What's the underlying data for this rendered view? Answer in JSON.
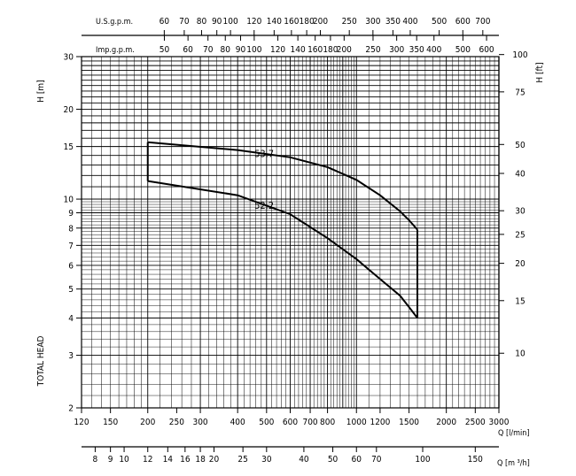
{
  "chart_data": {
    "type": "line",
    "scale": "log-log",
    "grid": true,
    "axes": {
      "q_lmin": {
        "label": "Q [l/min]",
        "range": [
          120,
          3000
        ],
        "ticks": [
          120,
          150,
          200,
          250,
          300,
          400,
          500,
          600,
          700,
          800,
          1000,
          1200,
          1500,
          2000,
          2500,
          3000
        ]
      },
      "q_m3h": {
        "label": "Q [m ³/h]",
        "ticks": [
          8,
          9,
          10,
          12,
          14,
          16,
          18,
          20,
          25,
          30,
          40,
          50,
          60,
          70,
          100,
          150
        ]
      },
      "us_gpm": {
        "label": "U.S.g.p.m.",
        "ticks": [
          60,
          70,
          80,
          90,
          100,
          120,
          140,
          160,
          180,
          200,
          250,
          300,
          350,
          400,
          500,
          600,
          700
        ]
      },
      "imp_gpm": {
        "label": "Imp.g.p.m.",
        "ticks": [
          50,
          60,
          70,
          80,
          90,
          100,
          120,
          140,
          160,
          180,
          200,
          250,
          300,
          350,
          400,
          500,
          600
        ]
      },
      "h_m": {
        "label": "H [m]",
        "range": [
          2,
          30
        ],
        "ticks": [
          2,
          3,
          4,
          5,
          6,
          7,
          8,
          9,
          10,
          15,
          20,
          30
        ]
      },
      "h_ft": {
        "label": "H [ft]",
        "ticks": [
          10,
          15,
          20,
          25,
          30,
          40,
          50,
          75,
          100
        ]
      },
      "side_label": "TOTAL HEAD"
    },
    "series": [
      {
        "name": "53.7",
        "x": [
          200,
          400,
          600,
          800,
          1000,
          1200,
          1400,
          1500,
          1600
        ],
        "y": [
          15.5,
          14.6,
          13.8,
          12.8,
          11.6,
          10.3,
          9.1,
          8.5,
          7.9
        ]
      },
      {
        "name": "52.2",
        "x": [
          200,
          400,
          600,
          800,
          1000,
          1200,
          1400,
          1500,
          1600
        ],
        "y": [
          11.5,
          10.3,
          8.9,
          7.4,
          6.3,
          5.4,
          4.75,
          4.35,
          4.0
        ]
      }
    ],
    "envelope_x": [
      200,
      1600
    ]
  }
}
